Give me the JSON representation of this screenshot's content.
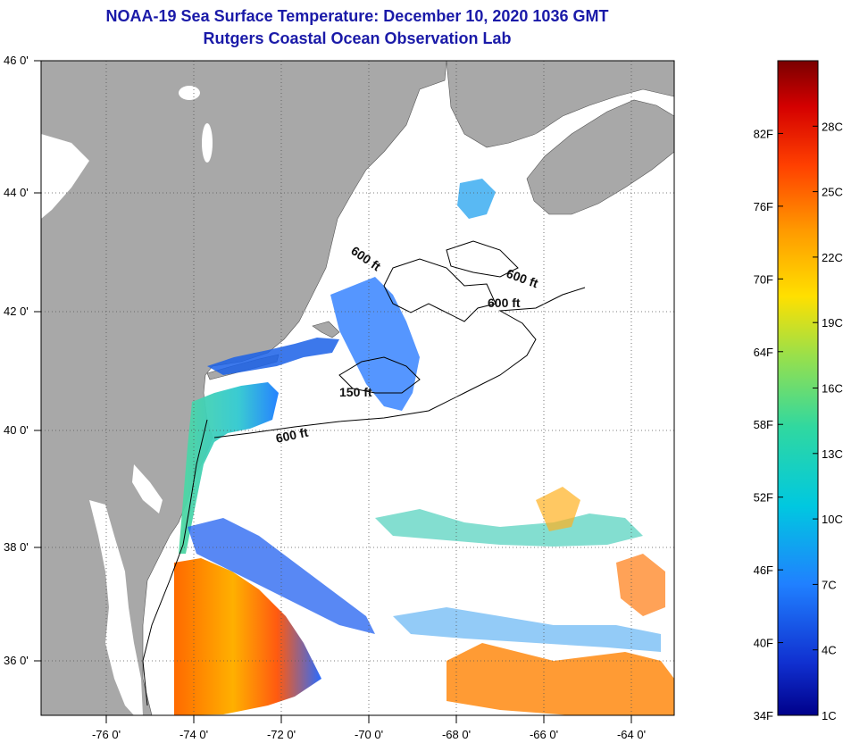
{
  "title": {
    "line1": "NOAA-19 Sea Surface Temperature:  December 10, 2020 1036 GMT",
    "line2": "Rutgers Coastal Ocean Observation Lab"
  },
  "map": {
    "lat_labels": [
      "46 0'",
      "44 0'",
      "42 0'",
      "40 0'",
      "38 0'",
      "36 0'"
    ],
    "lon_labels": [
      "-76 0'",
      "-74 0'",
      "-72 0'",
      "-70 0'",
      "-68 0'",
      "-66 0'",
      "-64 0'"
    ],
    "contour_labels": [
      "600 ft",
      "600 ft",
      "600 ft",
      "150 ft",
      "600 ft"
    ],
    "land_color": "#a8a8a8",
    "ocean_cloud_color": "#ffffff"
  },
  "colorbar": {
    "fahrenheit_labels": [
      "82F",
      "76F",
      "70F",
      "64F",
      "58F",
      "52F",
      "46F",
      "40F",
      "34F"
    ],
    "celsius_labels": [
      "28C",
      "25C",
      "22C",
      "19C",
      "16C",
      "13C",
      "10C",
      "7C",
      "4C",
      "1C"
    ],
    "colors": [
      "#7a0000",
      "#d40000",
      "#ff4000",
      "#ff9a00",
      "#ffe000",
      "#9ae04a",
      "#30d8a0",
      "#00c8e0",
      "#2080ff",
      "#1030d0",
      "#00008a"
    ]
  }
}
